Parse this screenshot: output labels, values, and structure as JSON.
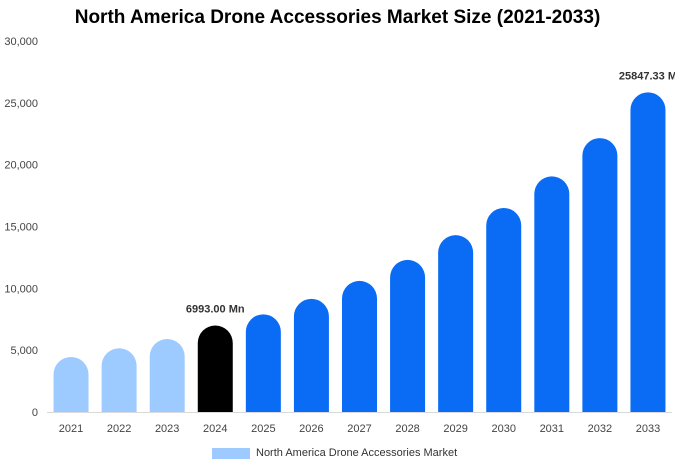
{
  "chart_data": {
    "type": "bar",
    "title": "North America Drone Accessories Market Size (2021-2033)",
    "categories": [
      "2021",
      "2022",
      "2023",
      "2024",
      "2025",
      "2026",
      "2027",
      "2028",
      "2029",
      "2030",
      "2031",
      "2032",
      "2033"
    ],
    "series": [
      {
        "name": "North America Drone Accessories Market",
        "values": [
          4450,
          5150,
          5900,
          6993,
          7900,
          9150,
          10600,
          12300,
          14300,
          16500,
          19050,
          22150,
          25847.33
        ]
      }
    ],
    "ylim": [
      0,
      30000
    ],
    "yticks": [
      "0",
      "5,000",
      "10,000",
      "15,000",
      "20,000",
      "25,000",
      "30,000"
    ],
    "ytick_values": [
      0,
      5000,
      10000,
      15000,
      20000,
      25000,
      30000
    ],
    "data_labels": [
      {
        "category": "2024",
        "text": "6993.00 Mn"
      },
      {
        "category": "2033",
        "text": "25847.33 M"
      }
    ],
    "bar_colors": {
      "historical": "#9ecbff",
      "current": "#000000",
      "forecast": "#0a6cf5"
    },
    "color_groups": [
      "historical",
      "historical",
      "historical",
      "current",
      "forecast",
      "forecast",
      "forecast",
      "forecast",
      "forecast",
      "forecast",
      "forecast",
      "forecast",
      "forecast"
    ],
    "legend_placement": "bottom-center",
    "grid": false
  }
}
